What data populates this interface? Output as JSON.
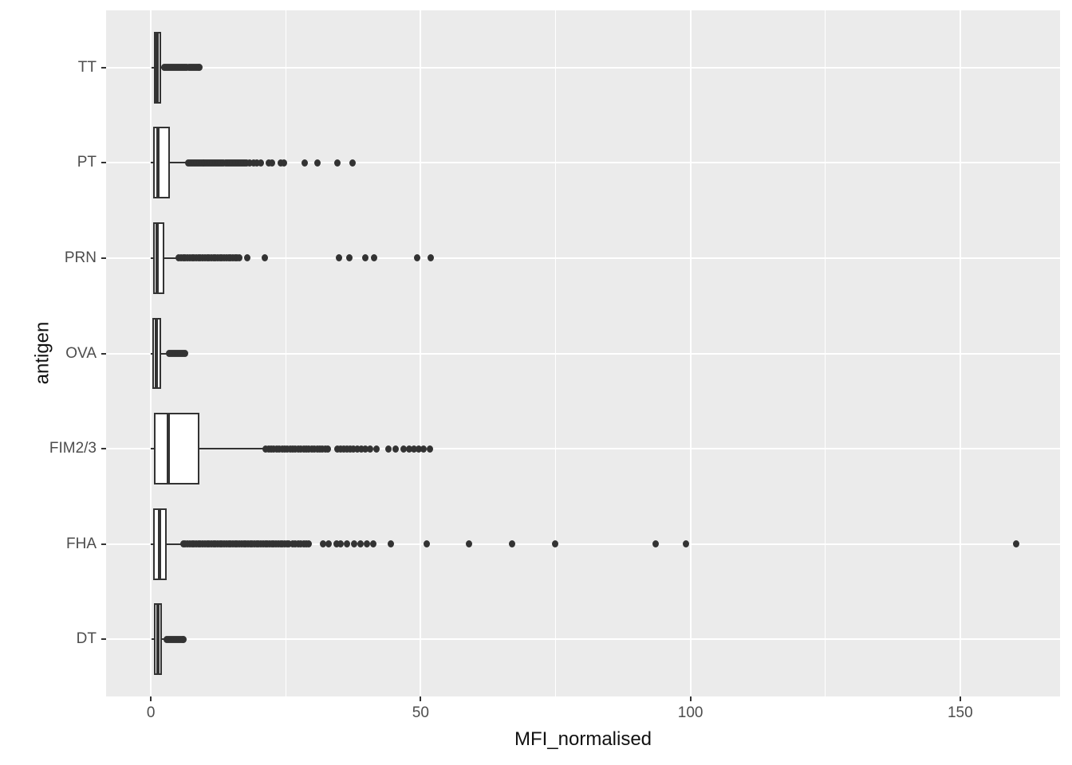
{
  "chart_data": {
    "type": "boxplot",
    "orientation": "horizontal",
    "title": "",
    "xlabel": "MFI_normalised",
    "ylabel": "antigen",
    "x_ticks": [
      0,
      50,
      100,
      150
    ],
    "x_minor_gridlines": [
      25,
      75,
      125
    ],
    "xlim": [
      -8.3,
      168.5
    ],
    "grid": "on",
    "legend": "none",
    "colors": {
      "page_bg": "#FFFFFF",
      "panel_bg": "#EBEBEB",
      "gridline": "#FFFFFF",
      "box_border": "#333333",
      "box_fill": "#FFFFFF",
      "point": "#333333",
      "tick_label": "#4D4D4D",
      "axis_title": "#111111"
    },
    "categories_top_to_bottom": [
      "TT",
      "PT",
      "PRN",
      "OVA",
      "FIM2/3",
      "FHA",
      "DT"
    ],
    "series": [
      {
        "name": "TT",
        "whisker_low": 0.1,
        "q1": 0.6,
        "median": 1.15,
        "q3": 1.9,
        "whisker_high": 2.4,
        "outliers": [
          2.5,
          2.8,
          3.1,
          3.4,
          3.7,
          4.0,
          4.3,
          4.6,
          4.9,
          5.2,
          5.5,
          5.8,
          6.1,
          6.4,
          6.7,
          7.0,
          7.3,
          7.6,
          7.9,
          8.2,
          8.5,
          8.8,
          9.0
        ]
      },
      {
        "name": "PT",
        "whisker_low": 0.05,
        "q1": 0.45,
        "median": 1.3,
        "q3": 3.6,
        "whisker_high": 6.8,
        "outliers": [
          6.9,
          7.2,
          7.5,
          7.8,
          8.1,
          8.4,
          8.7,
          9.0,
          9.3,
          9.6,
          9.9,
          10.2,
          10.5,
          10.8,
          11.1,
          11.4,
          11.7,
          12.0,
          12.3,
          12.6,
          12.9,
          13.2,
          13.5,
          13.8,
          14.1,
          14.4,
          14.7,
          15.0,
          15.3,
          15.6,
          15.9,
          16.2,
          16.5,
          16.8,
          17.1,
          17.4,
          17.7,
          18.3,
          19.0,
          19.7,
          20.4,
          21.8,
          22.5,
          24.0,
          24.6,
          28.5,
          30.9,
          34.6,
          37.4
        ]
      },
      {
        "name": "PRN",
        "whisker_low": 0.05,
        "q1": 0.35,
        "median": 1.2,
        "q3": 2.5,
        "whisker_high": 4.9,
        "outliers": [
          5.2,
          5.6,
          6.0,
          6.4,
          6.8,
          7.2,
          7.6,
          8.0,
          8.4,
          8.8,
          9.2,
          9.6,
          10.0,
          10.4,
          10.8,
          11.2,
          11.6,
          12.0,
          12.4,
          12.8,
          13.2,
          13.6,
          14.0,
          14.4,
          14.8,
          15.2,
          15.6,
          16.0,
          16.4,
          17.9,
          21.1,
          34.9,
          36.8,
          39.8,
          41.3,
          49.4,
          51.9
        ]
      },
      {
        "name": "OVA",
        "whisker_low": 0.03,
        "q1": 0.25,
        "median": 0.95,
        "q3": 1.9,
        "whisker_high": 3.1,
        "outliers": [
          3.4,
          3.7,
          4.0,
          4.3,
          4.6,
          4.9,
          5.2,
          5.5,
          5.8,
          6.1,
          6.3
        ]
      },
      {
        "name": "FIM2/3",
        "whisker_low": 0.05,
        "q1": 0.5,
        "median": 3.3,
        "q3": 9.0,
        "whisker_high": 21.0,
        "outliers": [
          21.3,
          21.8,
          22.3,
          22.8,
          23.3,
          23.8,
          24.3,
          24.8,
          25.3,
          25.8,
          26.3,
          26.8,
          27.3,
          27.8,
          28.3,
          28.8,
          29.3,
          29.8,
          30.3,
          30.8,
          31.3,
          31.8,
          32.3,
          32.8,
          34.5,
          35.1,
          35.7,
          36.3,
          36.9,
          37.5,
          38.2,
          39.0,
          39.8,
          40.6,
          41.8,
          44.1,
          45.3,
          46.9,
          47.8,
          48.7,
          49.6,
          50.6,
          51.7
        ]
      },
      {
        "name": "FHA",
        "whisker_low": 0.05,
        "q1": 0.4,
        "median": 1.6,
        "q3": 3.0,
        "whisker_high": 5.7,
        "outliers": [
          6.0,
          6.4,
          6.8,
          7.2,
          7.6,
          8.0,
          8.4,
          8.8,
          9.2,
          9.6,
          10.0,
          10.4,
          10.8,
          11.2,
          11.6,
          12.0,
          12.4,
          12.8,
          13.2,
          13.6,
          14.0,
          14.4,
          14.8,
          15.2,
          15.6,
          16.0,
          16.4,
          16.8,
          17.2,
          17.6,
          18.0,
          18.4,
          18.8,
          19.2,
          19.6,
          20.0,
          20.4,
          20.8,
          21.2,
          21.6,
          22.0,
          22.4,
          22.8,
          23.2,
          23.6,
          24.0,
          24.4,
          24.8,
          25.2,
          25.6,
          26.3,
          26.8,
          27.3,
          27.8,
          28.3,
          28.8,
          29.2,
          31.9,
          33.0,
          34.4,
          35.2,
          36.4,
          37.7,
          38.9,
          40.1,
          41.2,
          44.5,
          51.1,
          58.9,
          66.9,
          74.9,
          93.6,
          99.2,
          160.4
        ]
      },
      {
        "name": "DT",
        "whisker_low": 0.1,
        "q1": 0.6,
        "median": 1.3,
        "q3": 2.1,
        "whisker_high": 2.6,
        "outliers": [
          2.9,
          3.2,
          3.5,
          3.8,
          4.1,
          4.4,
          4.7,
          5.0,
          5.3,
          5.6,
          5.9,
          6.1
        ]
      }
    ]
  }
}
